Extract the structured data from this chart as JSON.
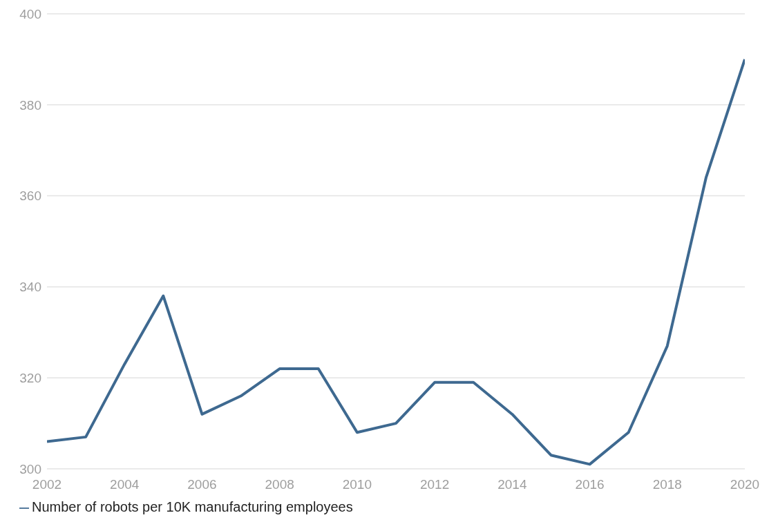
{
  "chart_data": {
    "type": "line",
    "x": [
      2002,
      2003,
      2004,
      2005,
      2006,
      2007,
      2008,
      2009,
      2010,
      2011,
      2012,
      2013,
      2014,
      2015,
      2016,
      2017,
      2018,
      2019,
      2020
    ],
    "series": [
      {
        "name": "Number of robots per 10K manufacturing employees",
        "color": "#3e6990",
        "values": [
          306,
          307,
          323,
          338,
          312,
          316,
          322,
          322,
          308,
          310,
          319,
          319,
          312,
          303,
          301,
          308,
          327,
          364,
          390
        ]
      }
    ],
    "xlim": [
      2002,
      2020
    ],
    "xticks": [
      2002,
      2004,
      2006,
      2008,
      2010,
      2012,
      2014,
      2016,
      2018,
      2020
    ],
    "ylim": [
      300,
      400
    ],
    "yticks": [
      300,
      320,
      340,
      360,
      380,
      400
    ],
    "grid": "y",
    "legend": "bottom left",
    "marker": "none",
    "line_style": "solid"
  }
}
